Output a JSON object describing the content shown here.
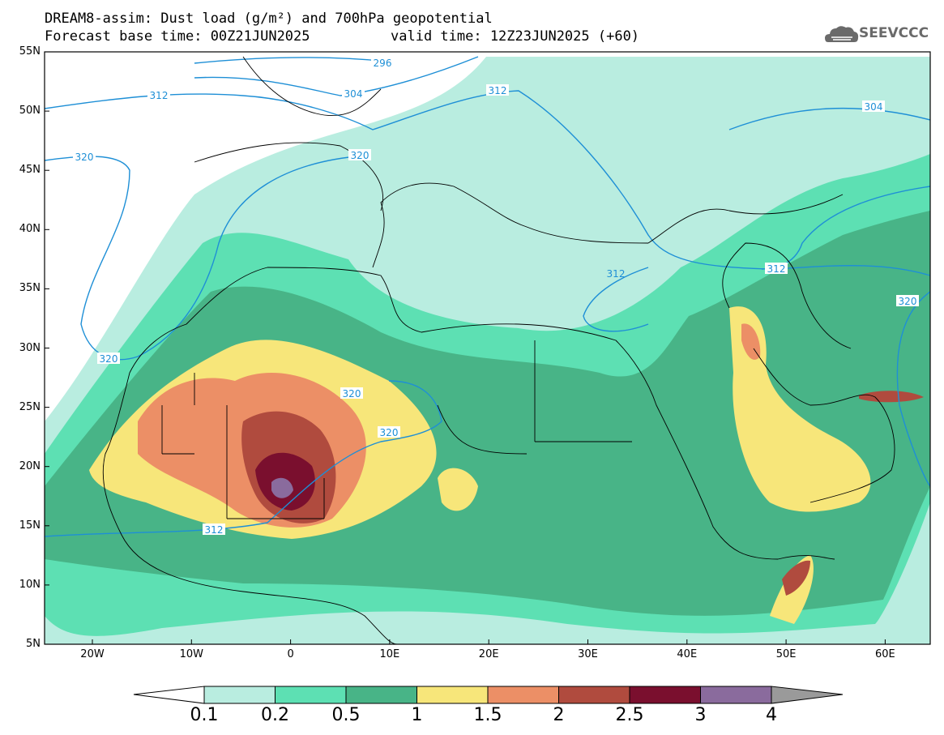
{
  "header": {
    "title_line1": "DREAM8-assim: Dust load (g/m²) and 700hPa geopotential",
    "title_line2": "Forecast base time: 00Z21JUN2025",
    "valid_time": "valid time: 12Z23JUN2025 (+60)",
    "logo_text": "SEEVCCC"
  },
  "axes": {
    "lat_labels": [
      "55N",
      "50N",
      "45N",
      "40N",
      "35N",
      "30N",
      "25N",
      "20N",
      "15N",
      "10N",
      "5N"
    ],
    "lon_labels": [
      "20W",
      "10W",
      "0",
      "10E",
      "20E",
      "30E",
      "40E",
      "50E",
      "60E"
    ]
  },
  "contour_labels": [
    "296",
    "304",
    "312",
    "320",
    "320",
    "312",
    "320",
    "304",
    "312",
    "320",
    "320",
    "320",
    "312",
    "312"
  ],
  "colorbar": {
    "labels": [
      "0.1",
      "0.2",
      "0.5",
      "1",
      "1.5",
      "2",
      "2.5",
      "3",
      "4"
    ],
    "colors": [
      "#b9ede0",
      "#5de0b3",
      "#48b487",
      "#f7e67a",
      "#ec8f66",
      "#b04b3e",
      "#7a0f2e",
      "#8a6b9d",
      "#9a9a9a"
    ]
  },
  "colors": {
    "geopotential": "#1e8fd6",
    "coastline": "#000000"
  }
}
